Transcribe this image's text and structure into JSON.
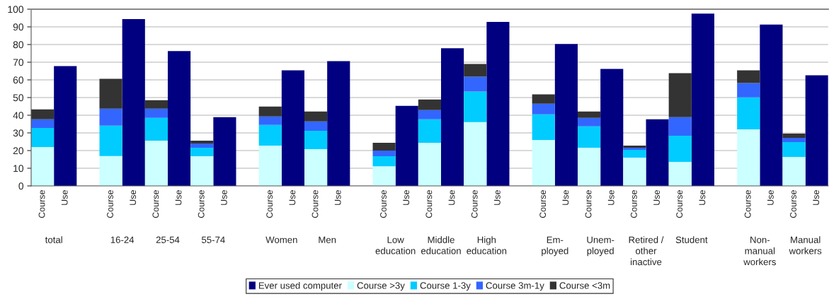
{
  "chart_data": {
    "type": "bar",
    "stacked": true,
    "categories": [
      "Course",
      "Use",
      null,
      "Course",
      "Use",
      "Course",
      "Use",
      "Course",
      "Use",
      null,
      "Course",
      "Use",
      "Course",
      "Use",
      null,
      "Course",
      "Use",
      "Course",
      "Use",
      "Course",
      "Use",
      null,
      "Course",
      "Use",
      "Course",
      "Use",
      "Course",
      "Use",
      "Course",
      "Use",
      null,
      "Course",
      "Use",
      "Course",
      "Use"
    ],
    "series": [
      {
        "name": "Ever used computer",
        "color": "#000080",
        "values": [
          null,
          67.8,
          null,
          null,
          94.4,
          null,
          76.3,
          null,
          38.9,
          null,
          null,
          65.4,
          null,
          70.6,
          null,
          null,
          45.3,
          null,
          77.9,
          null,
          92.8,
          null,
          null,
          80.3,
          null,
          66.2,
          null,
          37.7,
          null,
          97.5,
          null,
          null,
          91.3,
          null,
          62.6
        ]
      },
      {
        "name": "Course >3y",
        "color": "#ccffff",
        "values": [
          22.0,
          null,
          null,
          16.9,
          null,
          25.6,
          null,
          16.8,
          null,
          null,
          22.8,
          null,
          20.8,
          null,
          null,
          11.1,
          null,
          24.4,
          null,
          36.1,
          null,
          null,
          26.0,
          null,
          21.6,
          null,
          16.0,
          null,
          13.6,
          null,
          null,
          32.0,
          null,
          16.4,
          null
        ]
      },
      {
        "name": "Course 1-3y",
        "color": "#00ccff",
        "values": [
          10.8,
          null,
          null,
          17.2,
          null,
          12.9,
          null,
          4.8,
          null,
          null,
          11.7,
          null,
          10.4,
          null,
          null,
          5.7,
          null,
          13.3,
          null,
          17.3,
          null,
          null,
          14.5,
          null,
          12.1,
          null,
          4.4,
          null,
          14.8,
          null,
          null,
          18.1,
          null,
          8.4,
          null
        ]
      },
      {
        "name": "Course 3m-1y",
        "color": "#3366ff",
        "values": [
          4.9,
          null,
          null,
          9.6,
          null,
          5.2,
          null,
          2.4,
          null,
          null,
          4.8,
          null,
          5.3,
          null,
          null,
          3.2,
          null,
          5.2,
          null,
          8.4,
          null,
          null,
          6.0,
          null,
          4.8,
          null,
          1.2,
          null,
          10.5,
          null,
          null,
          8.1,
          null,
          2.4,
          null
        ]
      },
      {
        "name": "Course <3m",
        "color": "#333333",
        "values": [
          5.6,
          null,
          null,
          16.9,
          null,
          4.8,
          null,
          1.6,
          null,
          null,
          5.6,
          null,
          5.6,
          null,
          null,
          4.4,
          null,
          6.0,
          null,
          7.2,
          null,
          null,
          5.3,
          null,
          3.6,
          null,
          1.2,
          null,
          24.9,
          null,
          null,
          7.2,
          null,
          2.4,
          null
        ]
      }
    ],
    "annotations": [
      "total",
      "16-24",
      "25-54",
      "55-74",
      "Women",
      "Men",
      "Low\neducation",
      "Middle\neducation",
      "High\neducation",
      "Em-\nployed",
      "Unem-\nployed",
      "Retired /\nother\ninactive",
      "Student",
      "Non-\nmanual\nworkers",
      "Manual\nworkers"
    ],
    "ylim": [
      0,
      100
    ],
    "yticks": [
      0,
      10,
      20,
      30,
      40,
      50,
      60,
      70,
      80,
      90,
      100
    ],
    "grid": "y",
    "legend": "bottom"
  }
}
